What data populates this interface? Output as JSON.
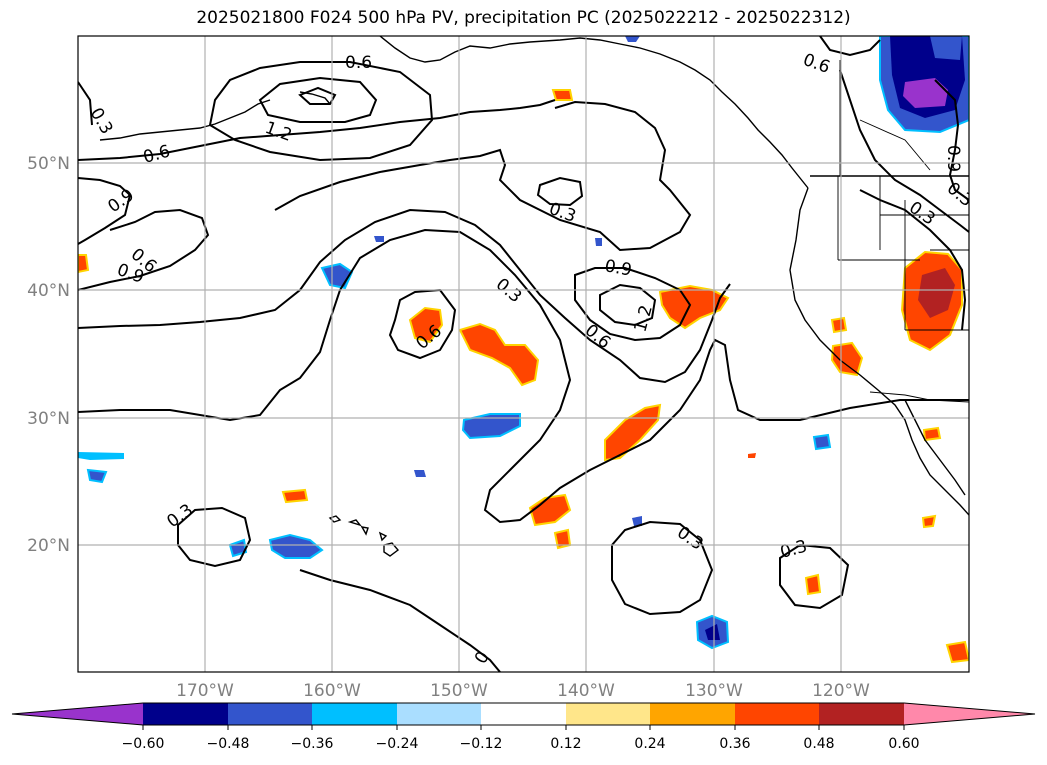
{
  "title": "2025021800 F024 500 hPa PV, precipitation PC (2025022212 - 2025022312)",
  "lat_labels": [
    "50°N",
    "40°N",
    "30°N",
    "20°N"
  ],
  "lon_labels": [
    "170°W",
    "160°W",
    "150°W",
    "140°W",
    "130°W",
    "120°W"
  ],
  "colorbar": {
    "ticks": [
      "−0.60",
      "−0.48",
      "−0.36",
      "−0.24",
      "−0.12",
      "0.12",
      "0.24",
      "0.36",
      "0.48",
      "0.60"
    ],
    "colors": [
      "#9933cc",
      "#00008b",
      "#3355cc",
      "#00bfff",
      "#aadeff",
      "#ffffff",
      "#ffe68a",
      "#ffa500",
      "#ff4500",
      "#b22222",
      "#ff88aa"
    ]
  },
  "contour_labels": [
    "0.6",
    "0.3",
    "1.2",
    "0.6",
    "0.9",
    "0.6",
    "0.9",
    "0.3",
    "0.9",
    "0.3",
    "1.2",
    "0.6",
    "0.6",
    "0.3",
    "0.3",
    "0.3",
    "0.3",
    "0",
    "0.6",
    "0.9",
    "0.3",
    "0.6"
  ]
}
